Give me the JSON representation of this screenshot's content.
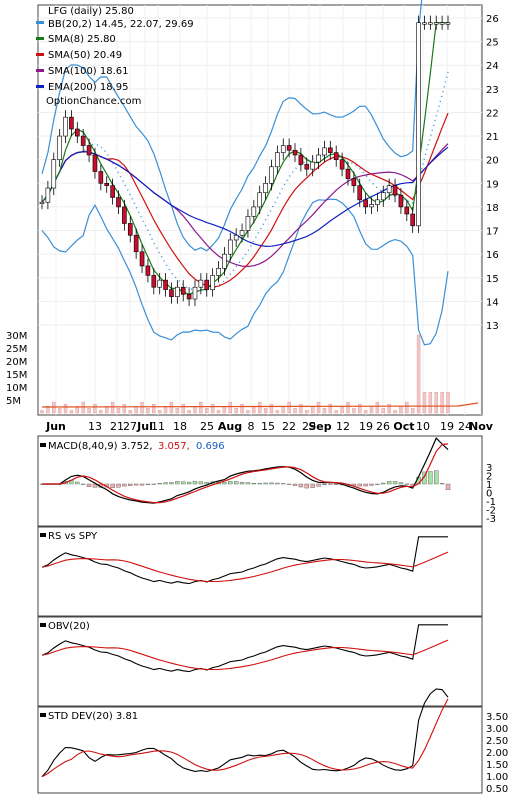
{
  "chart_data": {
    "type": "line",
    "ticker_title": "LFG (daily) 25.80",
    "legend": [
      {
        "label": "BB(20,2) 14.45, 22.07, 29.69",
        "color": "#3a8fd6"
      },
      {
        "label": "SMA(8) 25.80",
        "color": "#1a7a1a"
      },
      {
        "label": "SMA(50) 20.49",
        "color": "#d01010"
      },
      {
        "label": "SMA(100) 18.61",
        "color": "#8a1a8a"
      },
      {
        "label": "EMA(200) 18.95",
        "color": "#1020c0"
      }
    ],
    "watermark": "OptionChance.com",
    "price_axis": {
      "ticks": [
        "26",
        "25",
        "24",
        "23",
        "22",
        "21",
        "20",
        "19",
        "18",
        "17",
        "16",
        "15",
        "14",
        "13"
      ]
    },
    "volume_axis": {
      "ticks": [
        "30M",
        "25M",
        "20M",
        "15M",
        "10M",
        "5M"
      ]
    },
    "x_labels": [
      "Jun",
      "13",
      "21",
      "27",
      "Jul",
      "11",
      "18",
      "25",
      "Aug",
      "8",
      "15",
      "22",
      "29",
      "Sep",
      "12",
      "19",
      "26",
      "Oct",
      "10",
      "19",
      "24",
      "Nov"
    ],
    "price": {
      "close": [
        18.2,
        18.8,
        20.0,
        21.0,
        21.8,
        21.3,
        21.0,
        20.6,
        20.2,
        19.5,
        19.0,
        18.9,
        18.4,
        18.0,
        17.3,
        16.8,
        16.1,
        15.5,
        15.1,
        14.6,
        14.9,
        14.5,
        14.2,
        14.6,
        14.3,
        14.1,
        14.6,
        14.9,
        14.5,
        15.1,
        15.4,
        16.0,
        16.6,
        16.8,
        17.0,
        17.6,
        18.0,
        18.6,
        19.0,
        19.7,
        20.3,
        20.6,
        20.4,
        20.2,
        19.8,
        19.6,
        19.9,
        20.2,
        20.5,
        20.3,
        20.0,
        19.6,
        19.2,
        18.9,
        18.3,
        18.0,
        18.1,
        18.3,
        18.6,
        18.9,
        18.5,
        18.0,
        17.7,
        17.2,
        25.8,
        25.8,
        25.8,
        25.8,
        25.8,
        25.8
      ]
    },
    "macd": {
      "label": "MACD(8,40,9) 3.752,",
      "signal": "3.057,",
      "hist": "0.696",
      "ticks": [
        "3",
        "2",
        "1",
        "0",
        "-1",
        "-2",
        "-3"
      ]
    },
    "rs": {
      "label": "RS vs SPY"
    },
    "obv": {
      "label": "OBV(20)"
    },
    "stddev": {
      "label": "STD DEV(20) 3.81",
      "ticks": [
        "3.50",
        "3.00",
        "2.50",
        "2.00",
        "1.50",
        "1.00",
        "0.50"
      ]
    }
  }
}
